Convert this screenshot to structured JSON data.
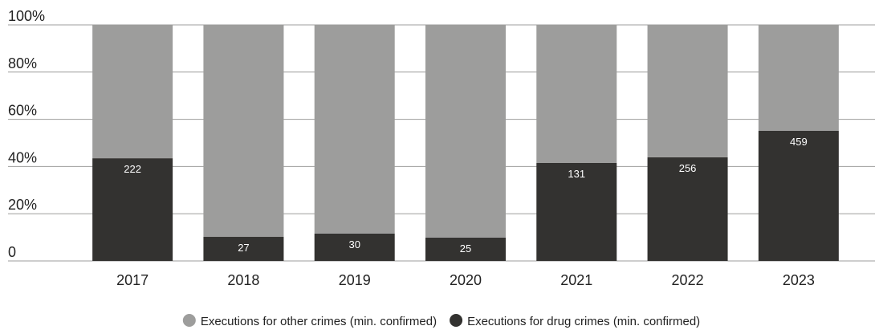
{
  "chart_data": {
    "type": "stacked_bar_100",
    "categories": [
      "2017",
      "2018",
      "2019",
      "2020",
      "2021",
      "2022",
      "2023"
    ],
    "series": [
      {
        "name": "Executions for other crimes (min. confirmed)",
        "color": "#9d9d9c",
        "values": [
          56.5,
          89.8,
          88.4,
          90.1,
          58.5,
          56.1,
          44.9
        ]
      },
      {
        "name": "Executions for drug crimes (min. confirmed)",
        "color": "#333230",
        "values": [
          43.5,
          10.2,
          11.6,
          9.9,
          41.5,
          43.9,
          55.1
        ],
        "counts": [
          222,
          27,
          30,
          25,
          131,
          256,
          459
        ]
      }
    ],
    "ylim": [
      0,
      100
    ],
    "yticks": [
      0,
      {
        "value": 20,
        "label": "20%"
      },
      {
        "value": 40,
        "label": "40%"
      },
      {
        "value": 60,
        "label": "60%"
      },
      {
        "value": 80,
        "label": "80%"
      },
      {
        "value": 100,
        "label": "100%"
      }
    ],
    "grid": true
  }
}
